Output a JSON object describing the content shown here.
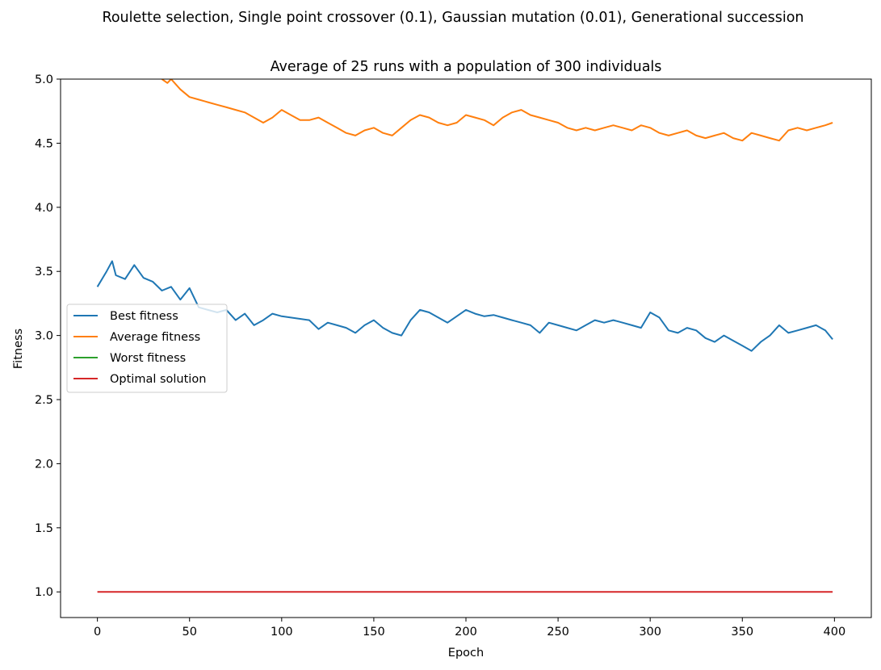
{
  "chart_data": {
    "type": "line",
    "suptitle": "Roulette selection, Single point crossover (0.1), Gaussian mutation (0.01), Generational succession",
    "title": "Average of 25 runs with a population of 300 individuals",
    "xlabel": "Epoch",
    "ylabel": "Fitness",
    "xlim": [
      -20,
      420
    ],
    "ylim": [
      0.8,
      5.0
    ],
    "xticks": [
      0,
      50,
      100,
      150,
      200,
      250,
      300,
      350,
      400
    ],
    "xtick_labels": [
      "0",
      "50",
      "100",
      "150",
      "200",
      "250",
      "300",
      "350",
      "400"
    ],
    "yticks": [
      1.0,
      1.5,
      2.0,
      2.5,
      3.0,
      3.5,
      4.0,
      4.5,
      5.0
    ],
    "ytick_labels": [
      "1.0",
      "1.5",
      "2.0",
      "2.5",
      "3.0",
      "3.5",
      "4.0",
      "4.5",
      "5.0"
    ],
    "grid": false,
    "legend_position": "center-left",
    "series": [
      {
        "name": "Best fitness",
        "color": "#1f77b4",
        "x": [
          0,
          5,
          8,
          10,
          15,
          20,
          25,
          30,
          35,
          40,
          45,
          50,
          55,
          60,
          65,
          70,
          75,
          80,
          85,
          90,
          95,
          100,
          105,
          110,
          115,
          120,
          125,
          130,
          135,
          140,
          145,
          150,
          155,
          160,
          165,
          170,
          175,
          180,
          185,
          190,
          195,
          200,
          205,
          210,
          215,
          220,
          225,
          230,
          235,
          240,
          245,
          250,
          255,
          260,
          265,
          270,
          275,
          280,
          285,
          290,
          295,
          300,
          305,
          310,
          315,
          320,
          325,
          330,
          335,
          340,
          345,
          350,
          355,
          360,
          365,
          370,
          375,
          380,
          385,
          390,
          395,
          399
        ],
        "values": [
          3.38,
          3.5,
          3.58,
          3.47,
          3.44,
          3.55,
          3.45,
          3.42,
          3.35,
          3.38,
          3.28,
          3.37,
          3.22,
          3.2,
          3.18,
          3.2,
          3.12,
          3.17,
          3.08,
          3.12,
          3.17,
          3.15,
          3.14,
          3.13,
          3.12,
          3.05,
          3.1,
          3.08,
          3.06,
          3.02,
          3.08,
          3.12,
          3.06,
          3.02,
          3.0,
          3.12,
          3.2,
          3.18,
          3.14,
          3.1,
          3.15,
          3.2,
          3.17,
          3.15,
          3.16,
          3.14,
          3.12,
          3.1,
          3.08,
          3.02,
          3.1,
          3.08,
          3.06,
          3.04,
          3.08,
          3.12,
          3.1,
          3.12,
          3.1,
          3.08,
          3.06,
          3.18,
          3.14,
          3.04,
          3.02,
          3.06,
          3.04,
          2.98,
          2.95,
          3.0,
          2.96,
          2.92,
          2.88,
          2.95,
          3.0,
          3.08,
          3.02,
          3.04,
          3.06,
          3.08,
          3.04,
          2.97
        ]
      },
      {
        "name": "Average fitness",
        "color": "#ff7f0e",
        "x": [
          35,
          38,
          40,
          45,
          50,
          55,
          60,
          65,
          70,
          75,
          80,
          85,
          90,
          95,
          100,
          105,
          110,
          115,
          120,
          125,
          130,
          135,
          140,
          145,
          150,
          155,
          160,
          165,
          170,
          175,
          180,
          185,
          190,
          195,
          200,
          205,
          210,
          215,
          220,
          225,
          230,
          235,
          240,
          245,
          250,
          255,
          260,
          265,
          270,
          275,
          280,
          285,
          290,
          295,
          300,
          305,
          310,
          315,
          320,
          325,
          330,
          335,
          340,
          345,
          350,
          355,
          360,
          365,
          370,
          375,
          380,
          385,
          390,
          395,
          399
        ],
        "values": [
          5.0,
          4.97,
          5.0,
          4.92,
          4.86,
          4.84,
          4.82,
          4.8,
          4.78,
          4.76,
          4.74,
          4.7,
          4.66,
          4.7,
          4.76,
          4.72,
          4.68,
          4.68,
          4.7,
          4.66,
          4.62,
          4.58,
          4.56,
          4.6,
          4.62,
          4.58,
          4.56,
          4.62,
          4.68,
          4.72,
          4.7,
          4.66,
          4.64,
          4.66,
          4.72,
          4.7,
          4.68,
          4.64,
          4.7,
          4.74,
          4.76,
          4.72,
          4.7,
          4.68,
          4.66,
          4.62,
          4.6,
          4.62,
          4.6,
          4.62,
          4.64,
          4.62,
          4.6,
          4.64,
          4.62,
          4.58,
          4.56,
          4.58,
          4.6,
          4.56,
          4.54,
          4.56,
          4.58,
          4.54,
          4.52,
          4.58,
          4.56,
          4.54,
          4.52,
          4.6,
          4.62,
          4.6,
          4.62,
          4.64,
          4.66
        ]
      },
      {
        "name": "Worst fitness",
        "color": "#2ca02c",
        "x": [],
        "values": []
      },
      {
        "name": "Optimal solution",
        "color": "#d62728",
        "x": [
          0,
          399
        ],
        "values": [
          1.0,
          1.0
        ]
      }
    ]
  }
}
